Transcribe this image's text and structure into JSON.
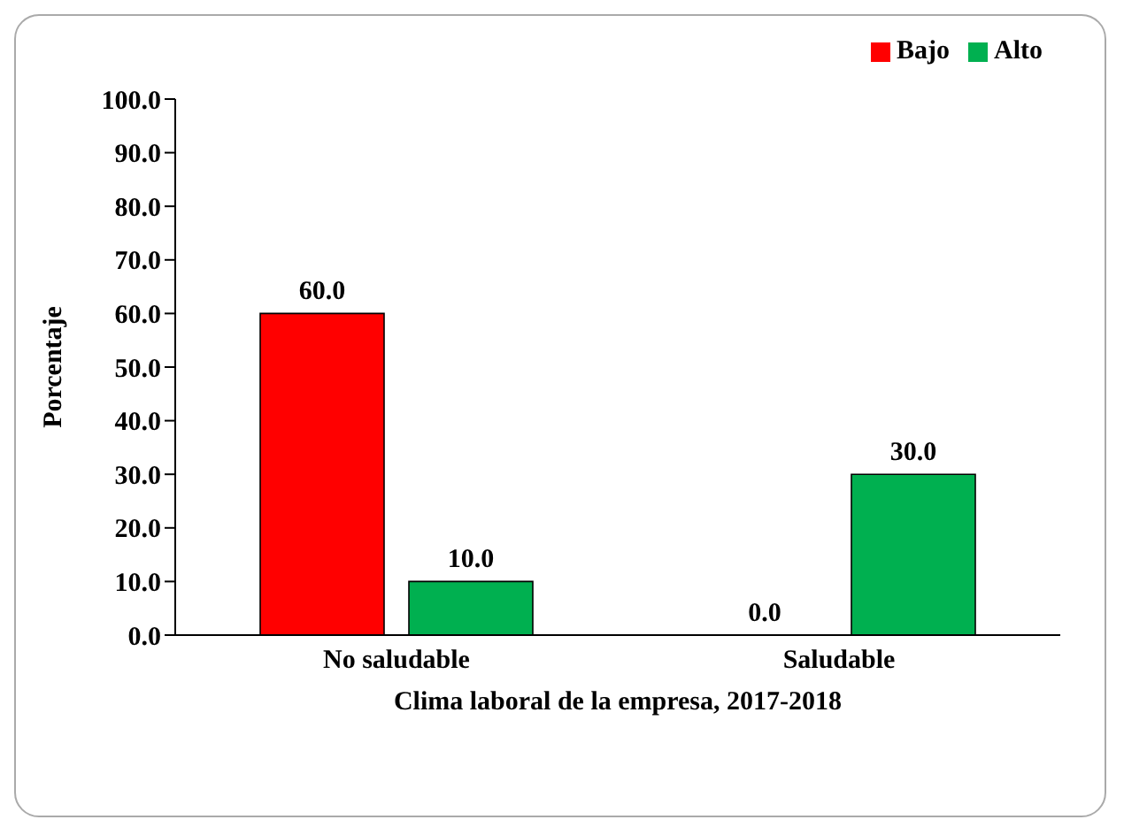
{
  "chart_data": {
    "type": "bar",
    "ylabel": "Porcentaje",
    "xlabel": "Clima laboral de la empresa, 2017-2018",
    "categories": [
      "No saludable",
      "Saludable"
    ],
    "series": [
      {
        "name": "Bajo",
        "color": "#ff0000",
        "values": [
          60,
          0
        ],
        "value_labels": [
          "60.0",
          "0.0"
        ]
      },
      {
        "name": "Alto",
        "color": "#00b050",
        "values": [
          10,
          30
        ],
        "value_labels": [
          "10.0",
          "30.0"
        ]
      }
    ],
    "ylim": [
      0,
      100
    ],
    "yticks": [
      {
        "value": 0,
        "label": "0.0"
      },
      {
        "value": 10,
        "label": "10.0"
      },
      {
        "value": 20,
        "label": "20.0"
      },
      {
        "value": 30,
        "label": "30.0"
      },
      {
        "value": 40,
        "label": "40.0"
      },
      {
        "value": 50,
        "label": "50.0"
      },
      {
        "value": 60,
        "label": "60.0"
      },
      {
        "value": 70,
        "label": "70.0"
      },
      {
        "value": 80,
        "label": "80.0"
      },
      {
        "value": 90,
        "label": "90.0"
      },
      {
        "value": 100,
        "label": "100.0"
      }
    ],
    "grid": false,
    "legend": "top right"
  }
}
